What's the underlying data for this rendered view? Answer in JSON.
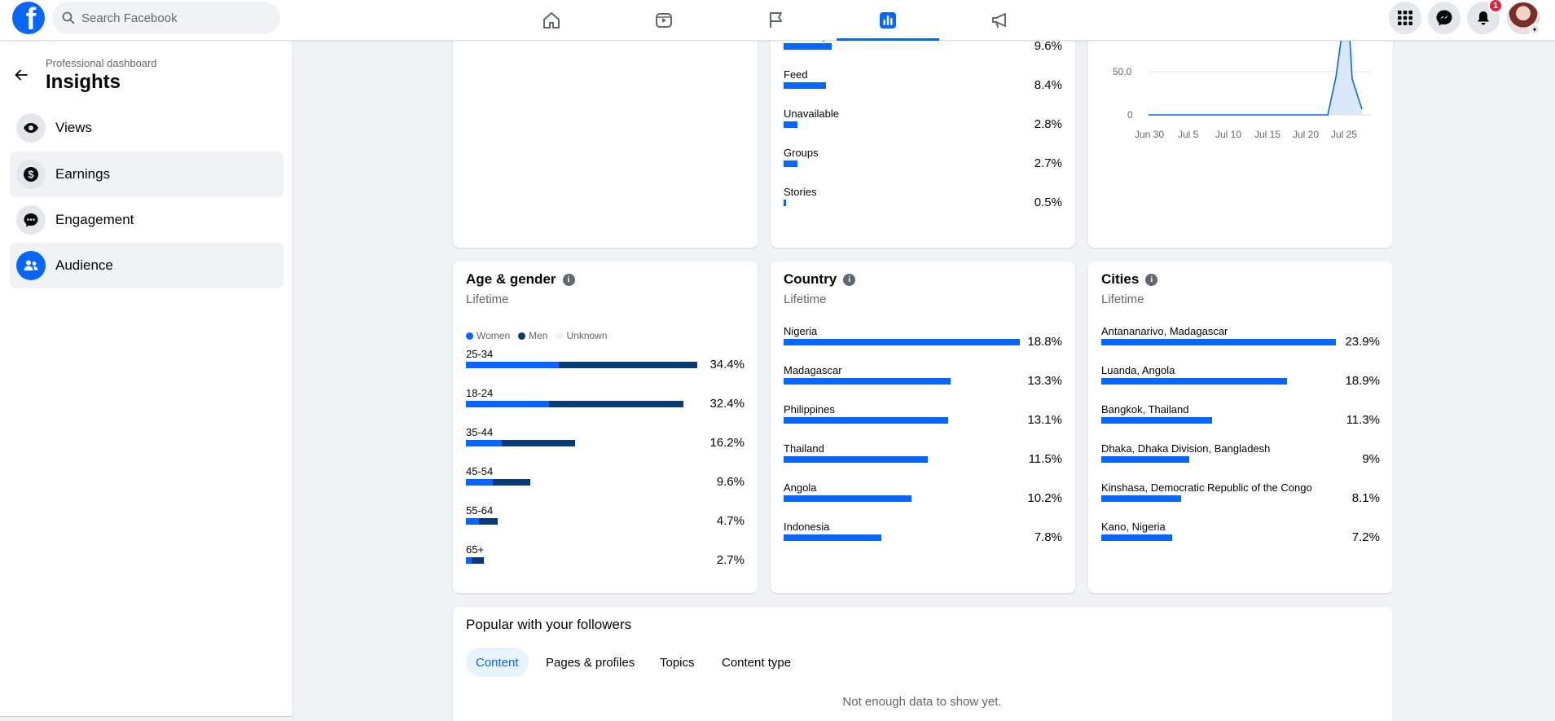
{
  "search": {
    "placeholder": "Search Facebook"
  },
  "header": {
    "notification_count": "1",
    "nav_icons": [
      "home-icon",
      "video-icon",
      "flag-icon",
      "insights-icon",
      "megaphone-icon"
    ]
  },
  "sidebar": {
    "subtitle": "Professional dashboard",
    "title": "Insights",
    "items": [
      {
        "label": "Views",
        "icon": "eye-icon"
      },
      {
        "label": "Earnings",
        "icon": "dollar-icon"
      },
      {
        "label": "Engagement",
        "icon": "chat-icon"
      },
      {
        "label": "Audience",
        "icon": "people-icon"
      }
    ]
  },
  "sources": {
    "rows": [
      {
        "label": "Your Page",
        "pct": "9.6%",
        "value": 9.6
      },
      {
        "label": "Feed",
        "pct": "8.4%",
        "value": 8.4
      },
      {
        "label": "Unavailable",
        "pct": "2.8%",
        "value": 2.8
      },
      {
        "label": "Groups",
        "pct": "2.7%",
        "value": 2.7
      },
      {
        "label": "Stories",
        "pct": "0.5%",
        "value": 0.5
      }
    ]
  },
  "trend": {
    "y_ticks": [
      "50.0",
      "0"
    ],
    "x_ticks": [
      "Jun 30",
      "Jul 5",
      "Jul 10",
      "Jul 15",
      "Jul 20",
      "Jul 25"
    ]
  },
  "age_gender": {
    "title": "Age & gender",
    "subtitle": "Lifetime",
    "legend": [
      "Women",
      "Men",
      "Unknown"
    ],
    "colors": {
      "women": "#0866ff",
      "men": "#0a3a75",
      "unknown": "#e7f3ff"
    },
    "rows": [
      {
        "label": "25-34",
        "pct": "34.4%",
        "total": 34.4,
        "women_share": 0.4
      },
      {
        "label": "18-24",
        "pct": "32.4%",
        "total": 32.4,
        "women_share": 0.38
      },
      {
        "label": "35-44",
        "pct": "16.2%",
        "total": 16.2,
        "women_share": 0.33
      },
      {
        "label": "45-54",
        "pct": "9.6%",
        "total": 9.6,
        "women_share": 0.42
      },
      {
        "label": "55-64",
        "pct": "4.7%",
        "total": 4.7,
        "women_share": 0.4
      },
      {
        "label": "65+",
        "pct": "2.7%",
        "total": 2.7,
        "women_share": 0.3
      }
    ]
  },
  "country": {
    "title": "Country",
    "subtitle": "Lifetime",
    "rows": [
      {
        "label": "Nigeria",
        "pct": "18.8%",
        "value": 18.8
      },
      {
        "label": "Madagascar",
        "pct": "13.3%",
        "value": 13.3
      },
      {
        "label": "Philippines",
        "pct": "13.1%",
        "value": 13.1
      },
      {
        "label": "Thailand",
        "pct": "11.5%",
        "value": 11.5
      },
      {
        "label": "Angola",
        "pct": "10.2%",
        "value": 10.2
      },
      {
        "label": "Indonesia",
        "pct": "7.8%",
        "value": 7.8
      }
    ]
  },
  "cities": {
    "title": "Cities",
    "subtitle": "Lifetime",
    "rows": [
      {
        "label": "Antananarivo, Madagascar",
        "pct": "23.9%",
        "value": 23.9
      },
      {
        "label": "Luanda, Angola",
        "pct": "18.9%",
        "value": 18.9
      },
      {
        "label": "Bangkok, Thailand",
        "pct": "11.3%",
        "value": 11.3
      },
      {
        "label": "Dhaka, Dhaka Division, Bangladesh",
        "pct": "9%",
        "value": 9
      },
      {
        "label": "Kinshasa, Democratic Republic of the Congo",
        "pct": "8.1%",
        "value": 8.1
      },
      {
        "label": "Kano, Nigeria",
        "pct": "7.2%",
        "value": 7.2
      }
    ]
  },
  "popular": {
    "title": "Popular with your followers",
    "tabs": [
      "Content",
      "Pages & profiles",
      "Topics",
      "Content type"
    ],
    "empty": "Not enough data to show yet."
  }
}
